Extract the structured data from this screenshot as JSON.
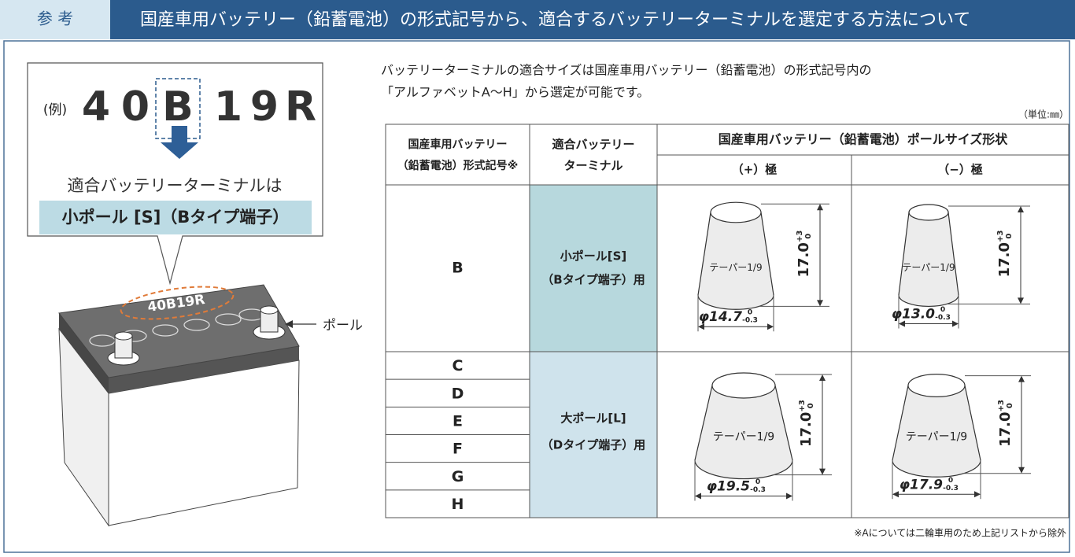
{
  "header": {
    "tag": "参 考",
    "title": "国産車用バッテリー（鉛蓄電池）の形式記号から、適合するバッテリーターミナルを選定する方法について"
  },
  "example": {
    "prefix": "(例)",
    "chars": [
      "4",
      "0",
      "B",
      "1",
      "9",
      "R"
    ],
    "result_text": "適合バッテリーターミナルは",
    "result": "小ポール [S]（Bタイプ端子）",
    "battery_label": "40B19R",
    "pole_label": "ポール"
  },
  "description": [
    "バッテリーターミナルの適合サイズは国産車用バッテリー（鉛蓄電池）の形式記号内の",
    "「アルファベットA～H」から選定が可能です。"
  ],
  "unit": "（単位:㎜）",
  "table": {
    "headers": {
      "symbol": [
        "国産車用バッテリー",
        "（鉛蓄電池）形式記号※"
      ],
      "terminal": [
        "適合バッテリー",
        "ターミナル"
      ],
      "pole_group": "国産車用バッテリー（鉛蓄電池）ポールサイズ形状",
      "positive": "（+）極",
      "negative": "（−）極"
    },
    "rows": [
      {
        "symbols": [
          "B"
        ],
        "terminal": [
          "小ポール[S]",
          "（Bタイプ端子）用"
        ],
        "positive": {
          "taper": "テーパー1/9",
          "height": "17.0",
          "height_tol_upper": "+3",
          "height_tol_lower": "0",
          "diameter": "φ14.7",
          "dia_tol_upper": "0",
          "dia_tol_lower": "-0.3"
        },
        "negative": {
          "taper": "テーパー1/9",
          "height": "17.0",
          "height_tol_upper": "+3",
          "height_tol_lower": "0",
          "diameter": "φ13.0",
          "dia_tol_upper": "0",
          "dia_tol_lower": "-0.3"
        }
      },
      {
        "symbols": [
          "C",
          "D",
          "E",
          "F",
          "G",
          "H"
        ],
        "terminal": [
          "大ポール[L]",
          "（Dタイプ端子）用"
        ],
        "positive": {
          "taper": "テーパー1/9",
          "height": "17.0",
          "height_tol_upper": "+3",
          "height_tol_lower": "0",
          "diameter": "φ19.5",
          "dia_tol_upper": "0",
          "dia_tol_lower": "-0.3"
        },
        "negative": {
          "taper": "テーパー1/9",
          "height": "17.0",
          "height_tol_upper": "+3",
          "height_tol_lower": "0",
          "diameter": "φ17.9",
          "dia_tol_upper": "0",
          "dia_tol_lower": "-0.3"
        }
      }
    ]
  },
  "footnote": "※Aについては二輪車用のため上記リストから除外"
}
